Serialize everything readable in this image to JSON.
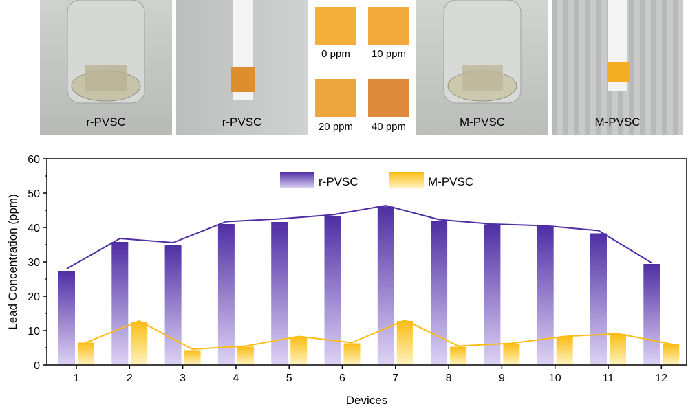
{
  "photos": [
    {
      "label": "r-PVSC"
    },
    {
      "label": "r-PVSC"
    },
    {
      "label": "M-PVSC"
    },
    {
      "label": "M-PVSC"
    }
  ],
  "swatches": [
    {
      "label": "0 ppm",
      "color": "#f3b03a"
    },
    {
      "label": "10 ppm",
      "color": "#f0a93a"
    },
    {
      "label": "20 ppm",
      "color": "#eba63e"
    },
    {
      "label": "40 ppm",
      "color": "#de8a3c"
    }
  ],
  "chart_data": {
    "type": "bar",
    "xlabel": "Devices",
    "ylabel": "Lead Concentration (ppm)",
    "ylim": [
      0,
      60
    ],
    "yticks": [
      0,
      10,
      20,
      30,
      40,
      50,
      60
    ],
    "categories": [
      "1",
      "2",
      "3",
      "4",
      "5",
      "6",
      "7",
      "8",
      "9",
      "10",
      "11",
      "12"
    ],
    "legend": "top-center",
    "series": [
      {
        "name": "r-PVSC",
        "color": "#4f2ea3",
        "light": "#ddd3f5",
        "values": [
          27.4,
          35.8,
          35.0,
          41.0,
          41.6,
          43.2,
          46.1,
          41.9,
          40.9,
          40.4,
          38.3,
          29.4
        ],
        "trend": [
          28.0,
          36.8,
          35.6,
          41.7,
          42.5,
          43.7,
          46.4,
          42.3,
          41.0,
          40.5,
          39.1,
          29.7
        ]
      },
      {
        "name": "M-PVSC",
        "color": "#fbbd14",
        "light": "#fff3c0",
        "values": [
          6.5,
          12.6,
          4.3,
          5.3,
          8.2,
          6.3,
          12.8,
          5.3,
          6.2,
          8.2,
          9.0,
          6.0
        ],
        "trend": [
          6.5,
          12.8,
          4.6,
          5.5,
          8.3,
          6.5,
          13.0,
          5.5,
          6.3,
          8.3,
          9.1,
          6.1
        ]
      }
    ]
  }
}
